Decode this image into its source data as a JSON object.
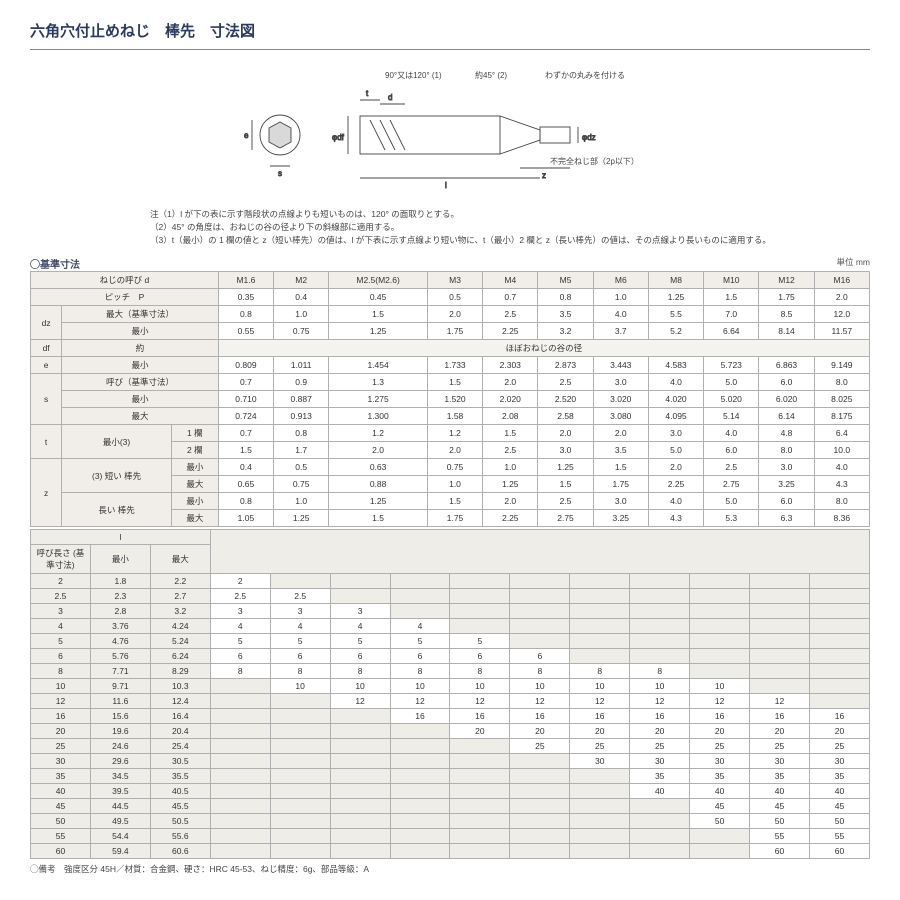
{
  "title": "六角穴付止めねじ　棒先　寸法図",
  "diagram": {
    "label_angle1": "90°又は120° (1)",
    "label_angle2": "約45° (2)",
    "label_round": "わずかの丸みを付ける",
    "label_thread": "不完全ねじ部（2p以下）",
    "sym_s": "s",
    "sym_e": "e",
    "sym_t": "t",
    "sym_d": "d",
    "sym_df": "φdf",
    "sym_dz": "φdz",
    "sym_z": "z",
    "sym_l": "l"
  },
  "notes": [
    "注（1）l が下の表に示す階段状の点線よりも短いものは、120° の面取りとする。",
    "（2）45° の角度は、おねじの谷の径より下の斜線部に適用する。",
    "（3）t（最小）の 1 欄の値と z（短い棒先）の値は、l が下表に示す点線より短い物に、t（最小）2 欄と z（長い棒先）の値は、その点線より長いものに適用する。"
  ],
  "section": "◯基準寸法",
  "unit": "単位 mm",
  "hdr": {
    "nominal": "ねじの呼び d",
    "sizes": [
      "M1.6",
      "M2",
      "M2.5(M2.6)",
      "M3",
      "M4",
      "M5",
      "M6",
      "M8",
      "M10",
      "M12",
      "M16"
    ]
  },
  "rows": {
    "pitch": {
      "label": "ピッチ　P",
      "vals": [
        "0.35",
        "0.4",
        "0.45",
        "0.5",
        "0.7",
        "0.8",
        "1.0",
        "1.25",
        "1.5",
        "1.75",
        "2.0"
      ]
    },
    "dz_max": {
      "label_main": "dz",
      "label": "最大（基準寸法）",
      "vals": [
        "0.8",
        "1.0",
        "1.5",
        "2.0",
        "2.5",
        "3.5",
        "4.0",
        "5.5",
        "7.0",
        "8.5",
        "12.0"
      ]
    },
    "dz_min": {
      "label": "最小",
      "vals": [
        "0.55",
        "0.75",
        "1.25",
        "1.75",
        "2.25",
        "3.2",
        "3.7",
        "5.2",
        "6.64",
        "8.14",
        "11.57"
      ]
    },
    "df": {
      "label_main": "df",
      "label": "約",
      "span": "ほぼおねじの谷の径"
    },
    "e_min": {
      "label_main": "e",
      "label": "最小",
      "vals": [
        "0.809",
        "1.011",
        "1.454",
        "1.733",
        "2.303",
        "2.873",
        "3.443",
        "4.583",
        "5.723",
        "6.863",
        "9.149"
      ]
    },
    "s_nom": {
      "label_main": "s",
      "label": "呼び（基準寸法）",
      "vals": [
        "0.7",
        "0.9",
        "1.3",
        "1.5",
        "2.0",
        "2.5",
        "3.0",
        "4.0",
        "5.0",
        "6.0",
        "8.0"
      ]
    },
    "s_min": {
      "label": "最小",
      "vals": [
        "0.710",
        "0.887",
        "1.275",
        "1.520",
        "2.020",
        "2.520",
        "3.020",
        "4.020",
        "5.020",
        "6.020",
        "8.025"
      ]
    },
    "s_max": {
      "label": "最大",
      "vals": [
        "0.724",
        "0.913",
        "1.300",
        "1.58",
        "2.08",
        "2.58",
        "3.080",
        "4.095",
        "5.14",
        "6.14",
        "8.175"
      ]
    },
    "t1": {
      "label_main": "t",
      "label_sub": "最小(3)",
      "label": "1 欄",
      "vals": [
        "0.7",
        "0.8",
        "1.2",
        "1.2",
        "1.5",
        "2.0",
        "2.0",
        "3.0",
        "4.0",
        "4.8",
        "6.4"
      ]
    },
    "t2": {
      "label": "2 欄",
      "vals": [
        "1.5",
        "1.7",
        "2.0",
        "2.0",
        "2.5",
        "3.0",
        "3.5",
        "5.0",
        "6.0",
        "8.0",
        "10.0"
      ]
    },
    "z_short_min": {
      "label_main": "z",
      "label_side": "(3) 短い 棒先",
      "label": "最小",
      "vals": [
        "0.4",
        "0.5",
        "0.63",
        "0.75",
        "1.0",
        "1.25",
        "1.5",
        "2.0",
        "2.5",
        "3.0",
        "4.0"
      ]
    },
    "z_short_max": {
      "label": "最大",
      "vals": [
        "0.65",
        "0.75",
        "0.88",
        "1.0",
        "1.25",
        "1.5",
        "1.75",
        "2.25",
        "2.75",
        "3.25",
        "4.3"
      ]
    },
    "z_long_min": {
      "label_side": "長い 棒先",
      "label": "最小",
      "vals": [
        "0.8",
        "1.0",
        "1.25",
        "1.5",
        "2.0",
        "2.5",
        "3.0",
        "4.0",
        "5.0",
        "6.0",
        "8.0"
      ]
    },
    "z_long_max": {
      "label": "最大",
      "vals": [
        "1.05",
        "1.25",
        "1.5",
        "1.75",
        "2.25",
        "2.75",
        "3.25",
        "4.3",
        "5.3",
        "6.3",
        "8.36"
      ]
    }
  },
  "ltable": {
    "head_l": "l",
    "head_nominal": "呼び長さ (基準寸法)",
    "head_min": "最小",
    "head_max": "最大",
    "cols": 11,
    "rows": [
      {
        "nom": "2",
        "min": "1.8",
        "max": "2.2",
        "cells": [
          "2",
          "",
          "",
          "",
          "",
          "",
          "",
          "",
          "",
          "",
          ""
        ],
        "from": 0,
        "to": 0,
        "dot": 0
      },
      {
        "nom": "2.5",
        "min": "2.3",
        "max": "2.7",
        "cells": [
          "2.5",
          "2.5",
          "",
          "",
          "",
          "",
          "",
          "",
          "",
          "",
          ""
        ],
        "from": 0,
        "to": 1,
        "dot": 1
      },
      {
        "nom": "3",
        "min": "2.8",
        "max": "3.2",
        "cells": [
          "3",
          "3",
          "3",
          "",
          "",
          "",
          "",
          "",
          "",
          "",
          ""
        ],
        "from": 0,
        "to": 2,
        "dot": 2
      },
      {
        "nom": "4",
        "min": "3.76",
        "max": "4.24",
        "cells": [
          "4",
          "4",
          "4",
          "4",
          "",
          "",
          "",
          "",
          "",
          "",
          ""
        ],
        "from": 0,
        "to": 3,
        "dot": 3
      },
      {
        "nom": "5",
        "min": "4.76",
        "max": "5.24",
        "cells": [
          "5",
          "5",
          "5",
          "5",
          "5",
          "",
          "",
          "",
          "",
          "",
          ""
        ],
        "from": 0,
        "to": 4,
        "dot": 4
      },
      {
        "nom": "6",
        "min": "5.76",
        "max": "6.24",
        "cells": [
          "6",
          "6",
          "6",
          "6",
          "6",
          "6",
          "",
          "",
          "",
          "",
          ""
        ],
        "from": 0,
        "to": 5,
        "dot": 5
      },
      {
        "nom": "8",
        "min": "7.71",
        "max": "8.29",
        "cells": [
          "8",
          "8",
          "8",
          "8",
          "8",
          "8",
          "8",
          "8",
          "",
          "",
          ""
        ],
        "from": 0,
        "to": 7,
        "dot": 7
      },
      {
        "nom": "10",
        "min": "9.71",
        "max": "10.3",
        "cells": [
          "",
          "10",
          "10",
          "10",
          "10",
          "10",
          "10",
          "10",
          "10",
          "",
          ""
        ],
        "from": 1,
        "to": 8,
        "dot": 8
      },
      {
        "nom": "12",
        "min": "11.6",
        "max": "12.4",
        "cells": [
          "",
          "",
          "12",
          "12",
          "12",
          "12",
          "12",
          "12",
          "12",
          "12",
          ""
        ],
        "from": 2,
        "to": 9,
        "dot": 9
      },
      {
        "nom": "16",
        "min": "15.6",
        "max": "16.4",
        "cells": [
          "",
          "",
          "",
          "16",
          "16",
          "16",
          "16",
          "16",
          "16",
          "16",
          "16"
        ],
        "from": 3,
        "to": 10,
        "dot": 10
      },
      {
        "nom": "20",
        "min": "19.6",
        "max": "20.4",
        "cells": [
          "",
          "",
          "",
          "",
          "20",
          "20",
          "20",
          "20",
          "20",
          "20",
          "20"
        ],
        "from": 4,
        "to": 10,
        "dot": -1
      },
      {
        "nom": "25",
        "min": "24.6",
        "max": "25.4",
        "cells": [
          "",
          "",
          "",
          "",
          "",
          "25",
          "25",
          "25",
          "25",
          "25",
          "25"
        ],
        "from": 5,
        "to": 10,
        "dot": -1
      },
      {
        "nom": "30",
        "min": "29.6",
        "max": "30.5",
        "cells": [
          "",
          "",
          "",
          "",
          "",
          "",
          "30",
          "30",
          "30",
          "30",
          "30"
        ],
        "from": 6,
        "to": 10,
        "dot": -1
      },
      {
        "nom": "35",
        "min": "34.5",
        "max": "35.5",
        "cells": [
          "",
          "",
          "",
          "",
          "",
          "",
          "",
          "35",
          "35",
          "35",
          "35"
        ],
        "from": 7,
        "to": 10,
        "dot": -1
      },
      {
        "nom": "40",
        "min": "39.5",
        "max": "40.5",
        "cells": [
          "",
          "",
          "",
          "",
          "",
          "",
          "",
          "40",
          "40",
          "40",
          "40"
        ],
        "from": 7,
        "to": 10,
        "dot": -1
      },
      {
        "nom": "45",
        "min": "44.5",
        "max": "45.5",
        "cells": [
          "",
          "",
          "",
          "",
          "",
          "",
          "",
          "",
          "45",
          "45",
          "45"
        ],
        "from": 8,
        "to": 10,
        "dot": -1
      },
      {
        "nom": "50",
        "min": "49.5",
        "max": "50.5",
        "cells": [
          "",
          "",
          "",
          "",
          "",
          "",
          "",
          "",
          "50",
          "50",
          "50"
        ],
        "from": 8,
        "to": 10,
        "dot": -1
      },
      {
        "nom": "55",
        "min": "54.4",
        "max": "55.6",
        "cells": [
          "",
          "",
          "",
          "",
          "",
          "",
          "",
          "",
          "",
          "55",
          "55"
        ],
        "from": 9,
        "to": 10,
        "dot": -1
      },
      {
        "nom": "60",
        "min": "59.4",
        "max": "60.6",
        "cells": [
          "",
          "",
          "",
          "",
          "",
          "",
          "",
          "",
          "",
          "60",
          "60"
        ],
        "from": 9,
        "to": 10,
        "dot": -1
      }
    ]
  },
  "footnote": "◯備考　強度区分 45H／材質：合金鋼、硬さ：HRC 45-53、ねじ精度：6g、部品等級：A"
}
